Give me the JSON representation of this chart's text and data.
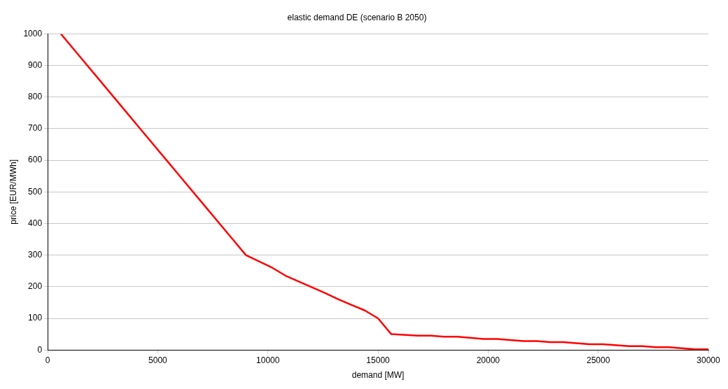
{
  "chart_data": {
    "type": "line",
    "title": "elastic demand DE (scenario B 2050)",
    "xlabel": "demand [MW]",
    "ylabel": "price [EUR/MWh]",
    "x": [
      600,
      1200,
      2400,
      3600,
      4200,
      5400,
      6000,
      7200,
      8400,
      9000,
      10200,
      10800,
      12600,
      13200,
      14400,
      15000,
      15600,
      16800,
      17400,
      18000,
      18600,
      19800,
      20400,
      21600,
      22200,
      22800,
      23400,
      24600,
      25200,
      26400,
      27000,
      27600,
      28200,
      29400,
      30000
    ],
    "series": [
      {
        "color": "#ff0000",
        "values": [
          1000,
          950,
          850,
          750,
          700,
          600,
          550,
          450,
          350,
          300,
          260,
          235,
          180,
          160,
          125,
          100,
          50,
          45,
          45,
          42,
          42,
          35,
          35,
          28,
          28,
          25,
          25,
          18,
          18,
          12,
          12,
          9,
          9,
          2,
          2
        ]
      }
    ],
    "xlim": [
      0,
      30000
    ],
    "xticks": [
      0,
      5000,
      10000,
      15000,
      20000,
      25000,
      30000
    ],
    "ylim": [
      0,
      1000
    ],
    "yticks": [
      0,
      100,
      200,
      300,
      400,
      500,
      600,
      700,
      800,
      900,
      1000
    ],
    "grid": "y",
    "legend": false,
    "marker": "none",
    "line_style": "solid"
  }
}
